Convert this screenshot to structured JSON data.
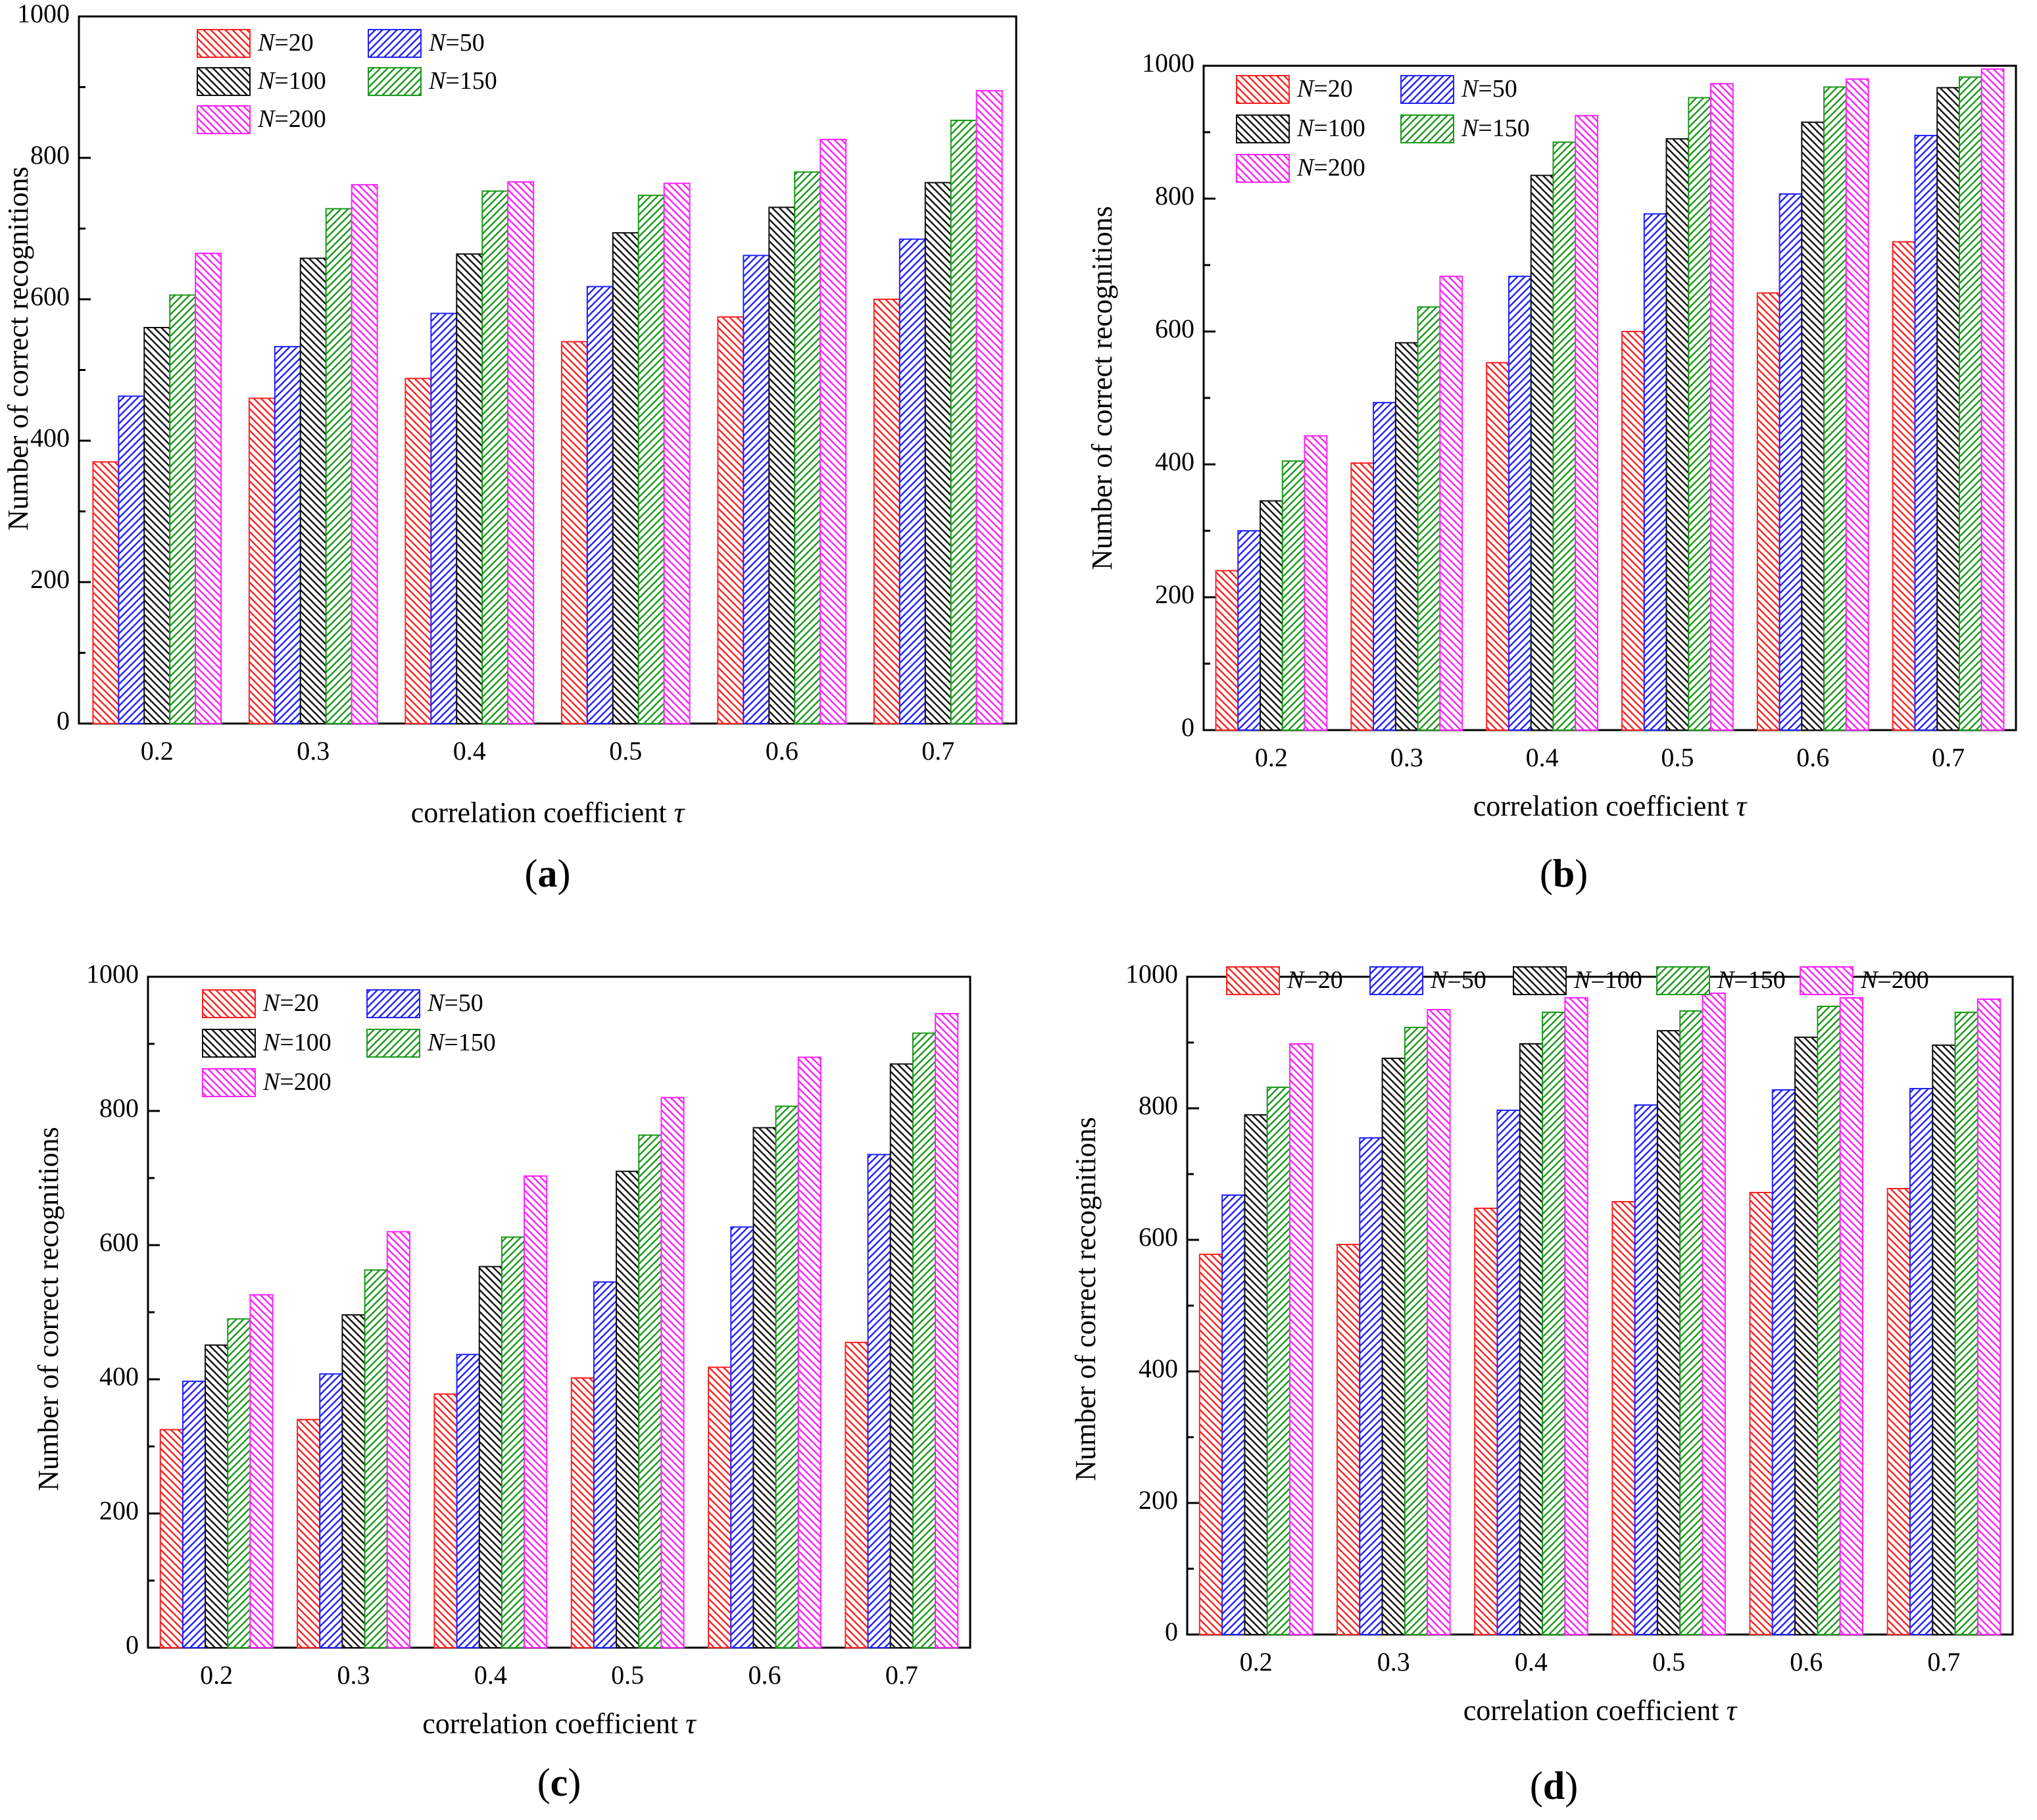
{
  "figure": {
    "series_names": [
      "N=20",
      "N=50",
      "N=100",
      "N=150",
      "N=200"
    ],
    "series_colors": [
      "#ff2222",
      "#2222ff",
      "#111111",
      "#1a9a1a",
      "#ff22ff"
    ]
  },
  "chart_data": [
    {
      "type": "bar",
      "panel_label": "a",
      "title": "",
      "xlabel": "correlation coefficient τ",
      "ylabel": "Number of correct recognitions",
      "categories": [
        "0.2",
        "0.3",
        "0.4",
        "0.5",
        "0.6",
        "0.7"
      ],
      "ylim": [
        0,
        1000
      ],
      "yticks": [
        "0",
        "200",
        "400",
        "600",
        "800",
        "1000"
      ],
      "grid": false,
      "legend_position": "top-left",
      "legend_layout": "two-column",
      "series": [
        {
          "name": "N=20",
          "values": [
            370,
            460,
            488,
            540,
            575,
            600
          ]
        },
        {
          "name": "N=50",
          "values": [
            463,
            533,
            580,
            618,
            662,
            685
          ]
        },
        {
          "name": "N=100",
          "values": [
            560,
            658,
            664,
            694,
            730,
            765
          ]
        },
        {
          "name": "N=150",
          "values": [
            606,
            728,
            753,
            747,
            780,
            853
          ]
        },
        {
          "name": "N=200",
          "values": [
            665,
            762,
            766,
            764,
            826,
            895
          ]
        }
      ]
    },
    {
      "type": "bar",
      "panel_label": "b",
      "title": "",
      "xlabel": "correlation coefficient τ",
      "ylabel": "Number of correct recognitions",
      "categories": [
        "0.2",
        "0.3",
        "0.4",
        "0.5",
        "0.6",
        "0.7"
      ],
      "ylim": [
        0,
        1000
      ],
      "yticks": [
        "0",
        "200",
        "400",
        "600",
        "800",
        "1000"
      ],
      "grid": false,
      "legend_position": "top-left",
      "legend_layout": "two-column",
      "series": [
        {
          "name": "N=20",
          "values": [
            240,
            402,
            553,
            600,
            658,
            735
          ]
        },
        {
          "name": "N=50",
          "values": [
            300,
            493,
            683,
            777,
            807,
            895
          ]
        },
        {
          "name": "N=100",
          "values": [
            345,
            583,
            835,
            890,
            915,
            967
          ]
        },
        {
          "name": "N=150",
          "values": [
            405,
            637,
            885,
            952,
            968,
            983
          ]
        },
        {
          "name": "N=200",
          "values": [
            443,
            683,
            925,
            973,
            980,
            995
          ]
        }
      ]
    },
    {
      "type": "bar",
      "panel_label": "c",
      "title": "",
      "xlabel": "correlation coefficient τ",
      "ylabel": "Number of correct recognitions",
      "categories": [
        "0.2",
        "0.3",
        "0.4",
        "0.5",
        "0.6",
        "0.7"
      ],
      "ylim": [
        0,
        1000
      ],
      "yticks": [
        "0",
        "200",
        "400",
        "600",
        "800",
        "1000"
      ],
      "grid": false,
      "legend_position": "top-left",
      "legend_layout": "two-column",
      "series": [
        {
          "name": "N=20",
          "values": [
            325,
            340,
            378,
            402,
            418,
            455
          ]
        },
        {
          "name": "N=50",
          "values": [
            397,
            408,
            437,
            545,
            627,
            735
          ]
        },
        {
          "name": "N=100",
          "values": [
            451,
            496,
            568,
            710,
            775,
            870
          ]
        },
        {
          "name": "N=150",
          "values": [
            490,
            563,
            612,
            764,
            807,
            916
          ]
        },
        {
          "name": "N=200",
          "values": [
            526,
            620,
            703,
            820,
            880,
            945
          ]
        }
      ]
    },
    {
      "type": "bar",
      "panel_label": "d",
      "title": "",
      "xlabel": "correlation coefficient τ",
      "ylabel": "Number of correct recognitions",
      "categories": [
        "0.2",
        "0.3",
        "0.4",
        "0.5",
        "0.6",
        "0.7"
      ],
      "ylim": [
        0,
        1000
      ],
      "yticks": [
        "0",
        "200",
        "400",
        "600",
        "800",
        "1000"
      ],
      "grid": false,
      "legend_position": "top",
      "legend_layout": "single-row",
      "series": [
        {
          "name": "N=20",
          "values": [
            578,
            593,
            648,
            658,
            672,
            678
          ]
        },
        {
          "name": "N=50",
          "values": [
            668,
            755,
            797,
            805,
            828,
            830
          ]
        },
        {
          "name": "N=100",
          "values": [
            790,
            876,
            898,
            918,
            908,
            896
          ]
        },
        {
          "name": "N=150",
          "values": [
            832,
            923,
            946,
            948,
            955,
            946
          ]
        },
        {
          "name": "N=200",
          "values": [
            898,
            950,
            968,
            975,
            968,
            966
          ]
        }
      ]
    }
  ]
}
